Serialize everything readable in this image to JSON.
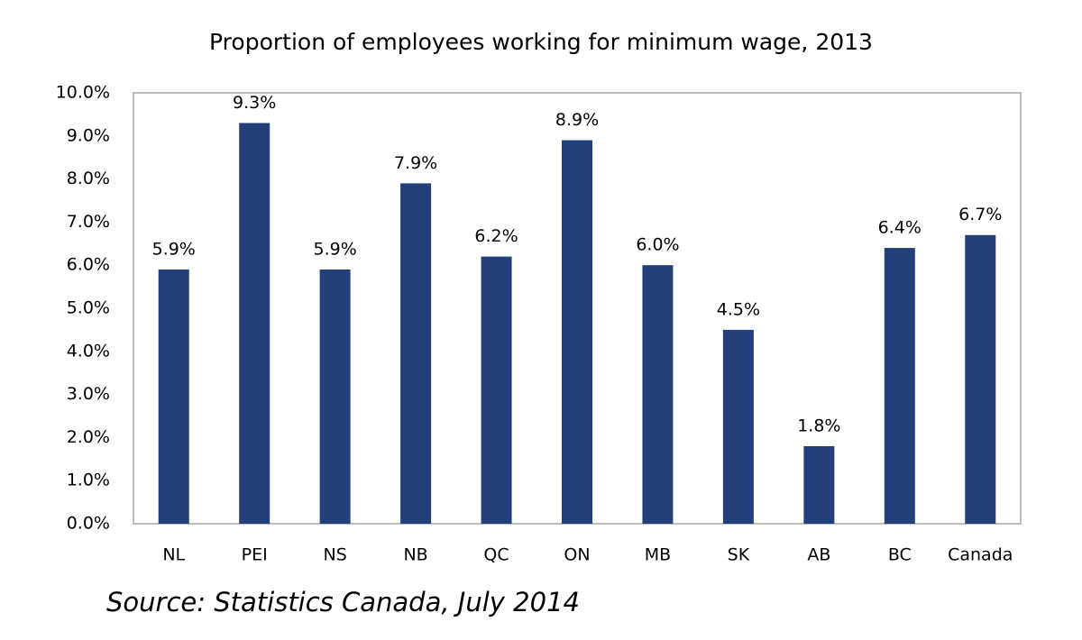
{
  "chart_data": {
    "type": "bar",
    "title": "Proportion of employees working for minimum wage, 2013",
    "categories": [
      "NL",
      "PEI",
      "NS",
      "NB",
      "QC",
      "ON",
      "MB",
      "SK",
      "AB",
      "BC",
      "Canada"
    ],
    "values": [
      5.9,
      9.3,
      5.9,
      7.9,
      6.2,
      8.9,
      6.0,
      4.5,
      1.8,
      6.4,
      6.7
    ],
    "value_labels": [
      "5.9%",
      "9.3%",
      "5.9%",
      "7.9%",
      "6.2%",
      "8.9%",
      "6.0%",
      "4.5%",
      "1.8%",
      "6.4%",
      "6.7%"
    ],
    "color": "#223f7a",
    "ylim": [
      0,
      10
    ],
    "yticks": [
      {
        "value": 0,
        "label": "0.0%"
      },
      {
        "value": 1,
        "label": "1.0%"
      },
      {
        "value": 2,
        "label": "2.0%"
      },
      {
        "value": 3,
        "label": "3.0%"
      },
      {
        "value": 4,
        "label": "4.0%"
      },
      {
        "value": 5,
        "label": "5.0%"
      },
      {
        "value": 6,
        "label": "6.0%"
      },
      {
        "value": 7,
        "label": "7.0%"
      },
      {
        "value": 8,
        "label": "8.0%"
      },
      {
        "value": 9,
        "label": "9.0%"
      },
      {
        "value": 10,
        "label": "10.0%"
      }
    ],
    "grid": false,
    "source": "Source:  Statistics Canada, July 2014"
  }
}
